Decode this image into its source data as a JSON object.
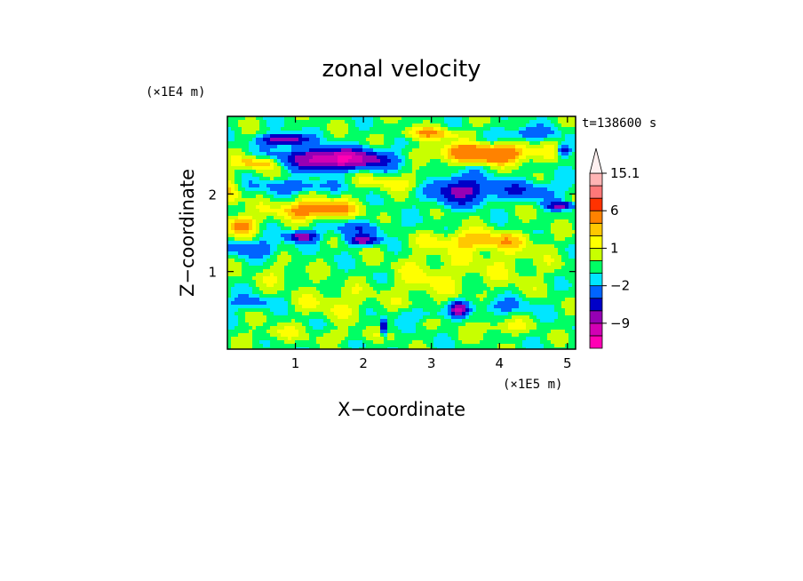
{
  "chart_data": {
    "type": "heatmap",
    "title": "zonal velocity",
    "xlabel": "X−coordinate",
    "ylabel": "Z−coordinate",
    "x_unit_label": "(×1E5 m)",
    "y_unit_label": "(×1E4 m)",
    "time_label": "t=138600 s",
    "xlim": [
      0,
      5.12
    ],
    "ylim": [
      0,
      3.0
    ],
    "x_ticks": [
      1,
      2,
      3,
      4,
      5
    ],
    "x_tick_labels": [
      "1",
      "2",
      "3",
      "4",
      "5"
    ],
    "y_ticks": [
      1,
      2
    ],
    "y_tick_labels": [
      "1",
      "2"
    ],
    "colorbar": {
      "levels": [
        -15,
        -12,
        -9,
        -6,
        -4,
        -2,
        -1,
        0,
        1,
        2,
        3,
        6,
        9,
        12,
        15.1
      ],
      "colors": [
        "#ff00b4",
        "#d200b4",
        "#9600b4",
        "#0000c8",
        "#0064ff",
        "#00e6ff",
        "#00ff64",
        "#c8ff00",
        "#ffff00",
        "#ffc800",
        "#ff8200",
        "#ff3200",
        "#ff7878",
        "#ffb4b4",
        "#fff0f0"
      ],
      "labeled_levels": [
        15.1,
        6,
        1,
        -2,
        -9
      ],
      "labels": [
        "15.1",
        "6",
        "1",
        "−2",
        "−9"
      ],
      "extend": "max"
    },
    "features": [
      {
        "x": 1.6,
        "z": 2.45,
        "sx": 0.7,
        "sz": 0.12,
        "v": -12
      },
      {
        "x": 0.85,
        "z": 2.7,
        "sx": 0.3,
        "sz": 0.07,
        "v": -9
      },
      {
        "x": 1.1,
        "z": 1.45,
        "sx": 0.22,
        "sz": 0.06,
        "v": -7
      },
      {
        "x": 2.0,
        "z": 1.4,
        "sx": 0.22,
        "sz": 0.06,
        "v": -7
      },
      {
        "x": 3.4,
        "z": 2.05,
        "sx": 0.4,
        "sz": 0.18,
        "v": -6
      },
      {
        "x": 4.9,
        "z": 1.85,
        "sx": 0.2,
        "sz": 0.05,
        "v": -6
      },
      {
        "x": 3.4,
        "z": 0.52,
        "sx": 0.12,
        "sz": 0.08,
        "v": -8
      },
      {
        "x": 2.3,
        "z": 0.28,
        "sx": 0.05,
        "sz": 0.1,
        "v": -7
      },
      {
        "x": 4.95,
        "z": 2.55,
        "sx": 0.1,
        "sz": 0.08,
        "v": -5
      },
      {
        "x": 3.8,
        "z": 2.52,
        "sx": 0.75,
        "sz": 0.12,
        "v": 6
      },
      {
        "x": 3.0,
        "z": 2.78,
        "sx": 0.5,
        "sz": 0.08,
        "v": 3
      },
      {
        "x": 0.5,
        "z": 2.4,
        "sx": 0.35,
        "sz": 0.08,
        "v": 4
      },
      {
        "x": 1.3,
        "z": 1.8,
        "sx": 0.55,
        "sz": 0.12,
        "v": 5
      },
      {
        "x": 0.2,
        "z": 1.6,
        "sx": 0.25,
        "sz": 0.12,
        "v": 4
      },
      {
        "x": 3.7,
        "z": 1.4,
        "sx": 0.7,
        "sz": 0.12,
        "v": 3
      },
      {
        "x": 2.5,
        "z": 2.15,
        "sx": 0.6,
        "sz": 0.1,
        "v": 2
      },
      {
        "x": 1.0,
        "z": 2.1,
        "sx": 0.55,
        "sz": 0.08,
        "v": -3
      },
      {
        "x": 4.3,
        "z": 2.05,
        "sx": 0.6,
        "sz": 0.12,
        "v": -3
      },
      {
        "x": 4.4,
        "z": 2.78,
        "sx": 0.4,
        "sz": 0.08,
        "v": -3
      },
      {
        "x": 0.4,
        "z": 1.3,
        "sx": 0.4,
        "sz": 0.1,
        "v": -3
      },
      {
        "x": 1.9,
        "z": 1.55,
        "sx": 0.5,
        "sz": 0.1,
        "v": -2.5
      },
      {
        "x": 0.3,
        "z": 0.6,
        "sx": 0.35,
        "sz": 0.08,
        "v": -2.5
      },
      {
        "x": 1.6,
        "z": 0.6,
        "sx": 0.6,
        "sz": 0.2,
        "v": 1.5
      },
      {
        "x": 2.9,
        "z": 0.9,
        "sx": 0.5,
        "sz": 0.35,
        "v": 1.5
      },
      {
        "x": 4.0,
        "z": 1.1,
        "sx": 0.8,
        "sz": 0.35,
        "v": 1.2
      },
      {
        "x": 0.7,
        "z": 0.2,
        "sx": 0.4,
        "sz": 0.1,
        "v": 1.5
      },
      {
        "x": 1.8,
        "z": 0.18,
        "sx": 0.5,
        "sz": 0.08,
        "v": 1.2
      },
      {
        "x": 4.0,
        "z": 0.28,
        "sx": 0.4,
        "sz": 0.1,
        "v": 1.8
      },
      {
        "x": 4.0,
        "z": 0.55,
        "sx": 0.5,
        "sz": 0.1,
        "v": -2
      },
      {
        "x": 2.9,
        "z": 0.45,
        "sx": 0.4,
        "sz": 0.08,
        "v": -1.8
      },
      {
        "x": 0.8,
        "z": 0.95,
        "sx": 0.4,
        "sz": 0.15,
        "v": 1.2
      },
      {
        "x": 0.05,
        "z": 2.0,
        "sx": 0.15,
        "sz": 0.25,
        "v": 2
      }
    ],
    "background_value": -0.5
  }
}
